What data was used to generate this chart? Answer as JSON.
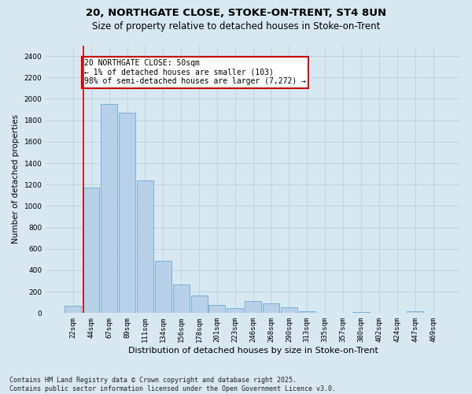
{
  "title1": "20, NORTHGATE CLOSE, STOKE-ON-TRENT, ST4 8UN",
  "title2": "Size of property relative to detached houses in Stoke-on-Trent",
  "xlabel": "Distribution of detached houses by size in Stoke-on-Trent",
  "ylabel": "Number of detached properties",
  "categories": [
    "22sqm",
    "44sqm",
    "67sqm",
    "89sqm",
    "111sqm",
    "134sqm",
    "156sqm",
    "178sqm",
    "201sqm",
    "223sqm",
    "246sqm",
    "268sqm",
    "290sqm",
    "313sqm",
    "335sqm",
    "357sqm",
    "380sqm",
    "402sqm",
    "424sqm",
    "447sqm",
    "469sqm"
  ],
  "values": [
    70,
    1170,
    1950,
    1870,
    1240,
    490,
    270,
    165,
    75,
    50,
    110,
    90,
    55,
    20,
    5,
    5,
    10,
    2,
    2,
    15,
    2
  ],
  "bar_color": "#b8d0e8",
  "bar_edge_color": "#6aaad4",
  "vline_color": "#cc0000",
  "vline_x": 0.575,
  "annotation_text": "20 NORTHGATE CLOSE: 50sqm\n← 1% of detached houses are smaller (103)\n98% of semi-detached houses are larger (7,272) →",
  "annotation_box_color": "#ffffff",
  "annotation_box_edge": "#cc0000",
  "ylim": [
    0,
    2500
  ],
  "yticks": [
    0,
    200,
    400,
    600,
    800,
    1000,
    1200,
    1400,
    1600,
    1800,
    2000,
    2200,
    2400
  ],
  "grid_color": "#c0d4e4",
  "bg_color": "#d8e8f0",
  "footnote": "Contains HM Land Registry data © Crown copyright and database right 2025.\nContains public sector information licensed under the Open Government Licence v3.0."
}
